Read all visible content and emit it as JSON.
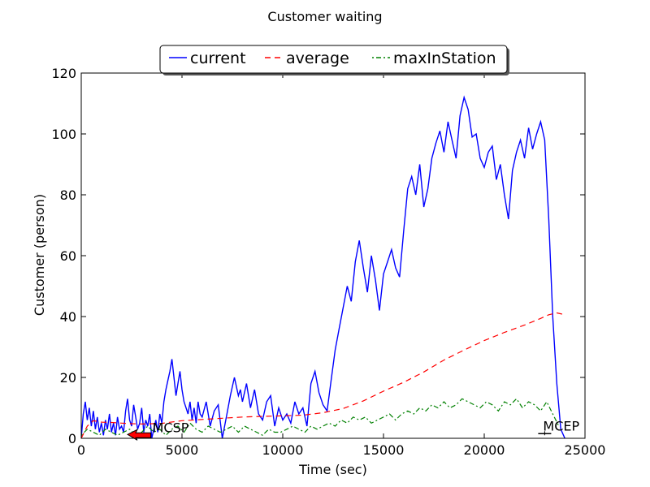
{
  "chart_data": {
    "type": "line",
    "title": "Customer waiting",
    "xlabel": "Time (sec)",
    "ylabel": "Customer (person)",
    "xlim": [
      0,
      25000
    ],
    "ylim": [
      0,
      120
    ],
    "xticks": [
      "0",
      "5000",
      "10000",
      "15000",
      "20000",
      "25000"
    ],
    "yticks": [
      "0",
      "20",
      "40",
      "60",
      "80",
      "100",
      "120"
    ],
    "xtick_values": [
      0,
      5000,
      10000,
      15000,
      20000,
      25000
    ],
    "ytick_values": [
      0,
      20,
      40,
      60,
      80,
      100,
      120
    ],
    "grid": false,
    "legend_position": "top-center",
    "annotations": [
      {
        "text": "MCSP",
        "x": 4500,
        "y": 1,
        "arrow_to": [
          2300,
          1
        ],
        "color": "#ff0000"
      },
      {
        "text": "MCEP",
        "x": 23000,
        "y": 1
      }
    ],
    "series": [
      {
        "name": "current",
        "color": "#0000ff",
        "style": "solid",
        "x": [
          0,
          100,
          200,
          300,
          400,
          500,
          600,
          700,
          800,
          900,
          1000,
          1100,
          1200,
          1300,
          1400,
          1500,
          1600,
          1700,
          1800,
          1900,
          2000,
          2100,
          2200,
          2300,
          2400,
          2500,
          2600,
          2700,
          2800,
          2900,
          3000,
          3100,
          3200,
          3300,
          3400,
          3500,
          3600,
          3700,
          3800,
          3900,
          4000,
          4100,
          4200,
          4300,
          4400,
          4500,
          4600,
          4700,
          4800,
          4900,
          5000,
          5100,
          5200,
          5300,
          5400,
          5500,
          5600,
          5700,
          5800,
          5900,
          6000,
          6200,
          6400,
          6600,
          6800,
          7000,
          7200,
          7400,
          7600,
          7800,
          7900,
          8000,
          8200,
          8400,
          8600,
          8800,
          9000,
          9200,
          9400,
          9600,
          9800,
          10000,
          10200,
          10400,
          10600,
          10800,
          11000,
          11200,
          11400,
          11600,
          11800,
          12000,
          12200,
          12400,
          12600,
          12800,
          13000,
          13200,
          13400,
          13600,
          13800,
          14000,
          14200,
          14400,
          14600,
          14800,
          15000,
          15200,
          15400,
          15600,
          15800,
          16000,
          16200,
          16400,
          16600,
          16800,
          17000,
          17200,
          17400,
          17600,
          17800,
          18000,
          18200,
          18400,
          18600,
          18800,
          19000,
          19200,
          19400,
          19600,
          19800,
          20000,
          20200,
          20400,
          20600,
          20800,
          21000,
          21200,
          21400,
          21600,
          21800,
          22000,
          22200,
          22400,
          22600,
          22800,
          23000,
          23200,
          23400,
          23600,
          23800,
          24000
        ],
        "y": [
          0,
          8,
          12,
          6,
          10,
          4,
          9,
          3,
          7,
          2,
          5,
          1,
          6,
          3,
          8,
          2,
          5,
          1,
          7,
          3,
          4,
          2,
          9,
          13,
          6,
          4,
          11,
          7,
          3,
          5,
          10,
          2,
          6,
          4,
          8,
          0,
          3,
          6,
          2,
          8,
          5,
          12,
          16,
          19,
          22,
          26,
          20,
          14,
          18,
          22,
          16,
          12,
          10,
          8,
          12,
          6,
          10,
          5,
          12,
          8,
          7,
          12,
          4,
          9,
          11,
          0,
          7,
          14,
          20,
          14,
          16,
          12,
          18,
          10,
          16,
          8,
          6,
          12,
          14,
          4,
          10,
          6,
          8,
          5,
          12,
          8,
          10,
          4,
          18,
          22,
          15,
          11,
          9,
          19,
          29,
          36,
          43,
          50,
          45,
          58,
          65,
          56,
          48,
          60,
          52,
          42,
          54,
          58,
          62,
          56,
          53,
          68,
          82,
          86,
          80,
          90,
          76,
          82,
          92,
          97,
          101,
          94,
          104,
          98,
          92,
          106,
          112,
          108,
          99,
          100,
          92,
          89,
          94,
          96,
          85,
          90,
          80,
          72,
          88,
          94,
          98,
          92,
          102,
          95,
          100,
          104,
          98,
          72,
          40,
          18,
          3,
          0
        ]
      },
      {
        "name": "average",
        "color": "#ff0000",
        "style": "dashed",
        "x": [
          0,
          300,
          600,
          1000,
          1500,
          2000,
          2500,
          3000,
          4000,
          5000,
          6000,
          7000,
          8000,
          9000,
          10000,
          11000,
          12000,
          13000,
          14000,
          15000,
          16000,
          17000,
          18000,
          19000,
          20000,
          21000,
          22000,
          22800,
          23200,
          23600,
          24000
        ],
        "y": [
          0,
          4,
          5.8,
          5.3,
          5.2,
          5,
          4.8,
          4.7,
          4.9,
          5.8,
          6.2,
          6.6,
          7,
          7.2,
          7.4,
          7.6,
          8.4,
          9.8,
          12.3,
          15.5,
          18.4,
          21.8,
          25.7,
          29,
          32.1,
          34.8,
          37.2,
          39.4,
          40.6,
          41.2,
          40.6
        ]
      },
      {
        "name": "maxInStation",
        "color": "#008000",
        "style": "dashdot",
        "x": [
          0,
          300,
          600,
          900,
          1200,
          1500,
          1800,
          2100,
          2400,
          2700,
          3000,
          3300,
          3600,
          3900,
          4200,
          4500,
          4800,
          5100,
          5400,
          5700,
          6000,
          6300,
          6600,
          6900,
          7200,
          7500,
          7800,
          8100,
          8400,
          8700,
          9000,
          9300,
          9600,
          9900,
          10200,
          10500,
          10800,
          11100,
          11400,
          11700,
          12000,
          12300,
          12600,
          12900,
          13200,
          13500,
          13800,
          14100,
          14400,
          14700,
          15000,
          15300,
          15600,
          15900,
          16200,
          16500,
          16800,
          17100,
          17400,
          17700,
          18000,
          18300,
          18600,
          18900,
          19200,
          19500,
          19800,
          20100,
          20400,
          20700,
          21000,
          21300,
          21600,
          21900,
          22200,
          22500,
          22800,
          23100,
          23400,
          23700
        ],
        "y": [
          1,
          3,
          2,
          1,
          3,
          2,
          1,
          2,
          3,
          1,
          2,
          4,
          2,
          3,
          1,
          3,
          4,
          2,
          5,
          3,
          2,
          4,
          3,
          2,
          3,
          4,
          2,
          4,
          3,
          2,
          1,
          3,
          2,
          2,
          3,
          4,
          3,
          2,
          4,
          3,
          4,
          5,
          4,
          6,
          5,
          7,
          6,
          7,
          5,
          6,
          7,
          8,
          6,
          8,
          9,
          8,
          10,
          9,
          11,
          10,
          12,
          10,
          11,
          13,
          12,
          11,
          10,
          12,
          11,
          9,
          12,
          11,
          13,
          10,
          12,
          11,
          9,
          12,
          8,
          4
        ]
      }
    ]
  }
}
